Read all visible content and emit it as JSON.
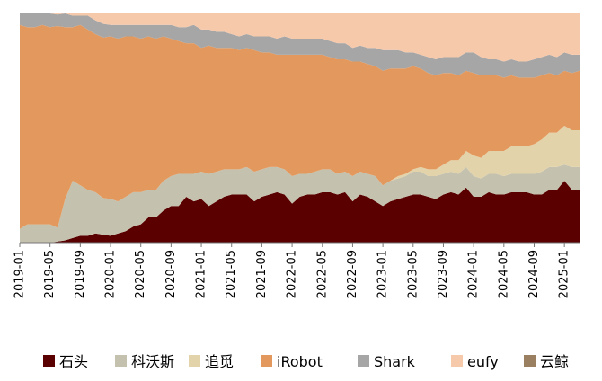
{
  "chart_data": {
    "type": "area",
    "stacked": true,
    "normalized_percent": true,
    "title": "",
    "xlabel": "",
    "ylabel": "",
    "ylim": [
      0,
      100
    ],
    "x": [
      "2019-01",
      "2019-02",
      "2019-03",
      "2019-04",
      "2019-05",
      "2019-06",
      "2019-07",
      "2019-08",
      "2019-09",
      "2019-10",
      "2019-11",
      "2019-12",
      "2020-01",
      "2020-02",
      "2020-03",
      "2020-04",
      "2020-05",
      "2020-06",
      "2020-07",
      "2020-08",
      "2020-09",
      "2020-10",
      "2020-11",
      "2020-12",
      "2021-01",
      "2021-02",
      "2021-03",
      "2021-04",
      "2021-05",
      "2021-06",
      "2021-07",
      "2021-08",
      "2021-09",
      "2021-10",
      "2021-11",
      "2021-12",
      "2022-01",
      "2022-02",
      "2022-03",
      "2022-04",
      "2022-05",
      "2022-06",
      "2022-07",
      "2022-08",
      "2022-09",
      "2022-10",
      "2022-11",
      "2022-12",
      "2023-01",
      "2023-02",
      "2023-03",
      "2023-04",
      "2023-05",
      "2023-06",
      "2023-07",
      "2023-08",
      "2023-09",
      "2023-10",
      "2023-11",
      "2023-12",
      "2024-01",
      "2024-02",
      "2024-03",
      "2024-04",
      "2024-05",
      "2024-06",
      "2024-07",
      "2024-08",
      "2024-09",
      "2024-10",
      "2024-11",
      "2024-12",
      "2025-01",
      "2025-02",
      "2025-03"
    ],
    "x_tick_labels": [
      "2019-01",
      "2019-05",
      "2019-09",
      "2020-01",
      "2020-05",
      "2020-09",
      "2021-01",
      "2021-05",
      "2021-09",
      "2022-01",
      "2022-05",
      "2022-09",
      "2023-01",
      "2023-05",
      "2023-09",
      "2024-01",
      "2024-05",
      "2024-09",
      "2025-01"
    ],
    "series": [
      {
        "name": "石头",
        "color": "#5a0000",
        "values": [
          0,
          0,
          0,
          0,
          0,
          0.5,
          1,
          2,
          3,
          3,
          4,
          3.5,
          3,
          4,
          5,
          7,
          8,
          11,
          11,
          14,
          16,
          16,
          20,
          18,
          19,
          16,
          18,
          20,
          21,
          21,
          21,
          18,
          20,
          21,
          22,
          21,
          17,
          20,
          21,
          21,
          22,
          22,
          21,
          22,
          18,
          21,
          20,
          18,
          16,
          18,
          19,
          20,
          21,
          21,
          20,
          19,
          21,
          22,
          21,
          24,
          20,
          20,
          22,
          21,
          21,
          22,
          22,
          22,
          21,
          21,
          23,
          23,
          27,
          23,
          23
        ]
      },
      {
        "name": "科沃斯",
        "color": "#c4c2ae",
        "values": [
          6,
          8,
          8,
          8,
          8,
          6,
          18,
          25,
          22,
          20,
          18,
          16,
          16,
          14,
          15,
          15,
          14,
          12,
          12,
          13,
          13,
          14,
          10,
          12,
          12,
          14,
          13,
          12,
          11,
          11,
          12,
          13,
          12,
          12,
          11,
          11,
          12,
          10,
          9,
          10,
          10,
          10,
          9,
          9,
          11,
          10,
          10,
          11,
          9,
          9,
          9,
          9,
          10,
          10,
          9,
          10,
          9,
          9,
          9,
          9,
          9,
          8,
          8,
          9,
          8,
          8,
          8,
          8,
          9,
          10,
          10,
          10,
          7,
          10,
          10
        ]
      },
      {
        "name": "追觅",
        "color": "#e3d3aa",
        "values": [
          0,
          0,
          0,
          0,
          0,
          0,
          0,
          0,
          0,
          0,
          0,
          0,
          0,
          0,
          0,
          0,
          0,
          0,
          0,
          0,
          0,
          0,
          0,
          0,
          0,
          0,
          0,
          0,
          0,
          0,
          0,
          0,
          0,
          0,
          0,
          0,
          0,
          0,
          0,
          0,
          0,
          0,
          0,
          0,
          0,
          0,
          0,
          0,
          0,
          0,
          1,
          1,
          1,
          2,
          3,
          3,
          4,
          5,
          6,
          7,
          9,
          9,
          10,
          10,
          11,
          12,
          12,
          12,
          13,
          14,
          15,
          15,
          17,
          16,
          16
        ]
      },
      {
        "name": "iRobot",
        "color": "#e3995e",
        "values": [
          89,
          86,
          86,
          87,
          86,
          88,
          75,
          67,
          70,
          70,
          69,
          70,
          71,
          71,
          70,
          68,
          67,
          67,
          66,
          63,
          60,
          58,
          57,
          57,
          54,
          56,
          54,
          53,
          53,
          52,
          52,
          53,
          51,
          50,
          49,
          50,
          53,
          52,
          52,
          51,
          50,
          49,
          50,
          49,
          50,
          48,
          48,
          48,
          50,
          49,
          47,
          46,
          45,
          43,
          42,
          41,
          40,
          38,
          37,
          35,
          36,
          36,
          33,
          33,
          32,
          31,
          30,
          30,
          29,
          28,
          26,
          25,
          24,
          25,
          26
        ]
      },
      {
        "name": "Shark",
        "color": "#a6a6a6",
        "values": [
          5,
          6,
          6,
          5,
          6,
          5,
          6,
          5,
          4,
          6,
          6,
          6,
          5,
          6,
          5,
          5,
          6,
          5,
          6,
          5,
          6,
          6,
          7,
          8,
          8,
          7,
          7,
          7,
          6,
          6,
          6,
          6,
          7,
          7,
          7,
          8,
          7,
          7,
          7,
          7,
          7,
          7,
          7,
          7,
          6,
          7,
          7,
          8,
          9,
          8,
          8,
          7,
          6,
          6,
          7,
          7,
          7,
          7,
          8,
          8,
          9,
          8,
          7,
          7,
          7,
          7,
          7,
          7,
          8,
          8,
          8,
          8,
          8,
          8,
          7
        ]
      },
      {
        "name": "eufy",
        "color": "#f7c9ab",
        "values": [
          0,
          0,
          0,
          0,
          0,
          0.5,
          0,
          1,
          1,
          1,
          3,
          4.5,
          5,
          5,
          5,
          5,
          5,
          5,
          5,
          5,
          5,
          6,
          6,
          5,
          7,
          7,
          8,
          8,
          9,
          10,
          9,
          10,
          10,
          10,
          11,
          10,
          11,
          11,
          11,
          11,
          11,
          12,
          13,
          13,
          15,
          14,
          15,
          15,
          16,
          16,
          16,
          17,
          17,
          18,
          19,
          20,
          19,
          19,
          19,
          17,
          17,
          19,
          20,
          20,
          21,
          20,
          21,
          21,
          20,
          19,
          18,
          19,
          17,
          18,
          18
        ]
      },
      {
        "name": "云鲸",
        "color": "#9a7f60",
        "values": [
          0,
          0,
          0,
          0,
          0,
          0,
          0,
          0,
          0,
          0,
          0,
          0,
          0,
          0,
          0,
          0,
          0,
          0,
          0,
          0,
          0,
          0,
          0,
          0,
          0,
          0,
          0,
          0,
          0,
          0,
          0,
          0,
          0,
          0,
          0,
          0,
          0,
          0,
          0,
          0,
          0,
          0,
          0,
          0,
          0,
          0,
          0,
          0,
          0,
          0,
          0,
          0,
          0,
          0,
          0,
          0,
          0,
          0,
          0,
          0,
          0,
          0,
          0,
          0,
          0,
          0,
          0,
          0,
          0,
          0,
          0,
          0,
          0,
          0,
          0
        ]
      }
    ]
  }
}
